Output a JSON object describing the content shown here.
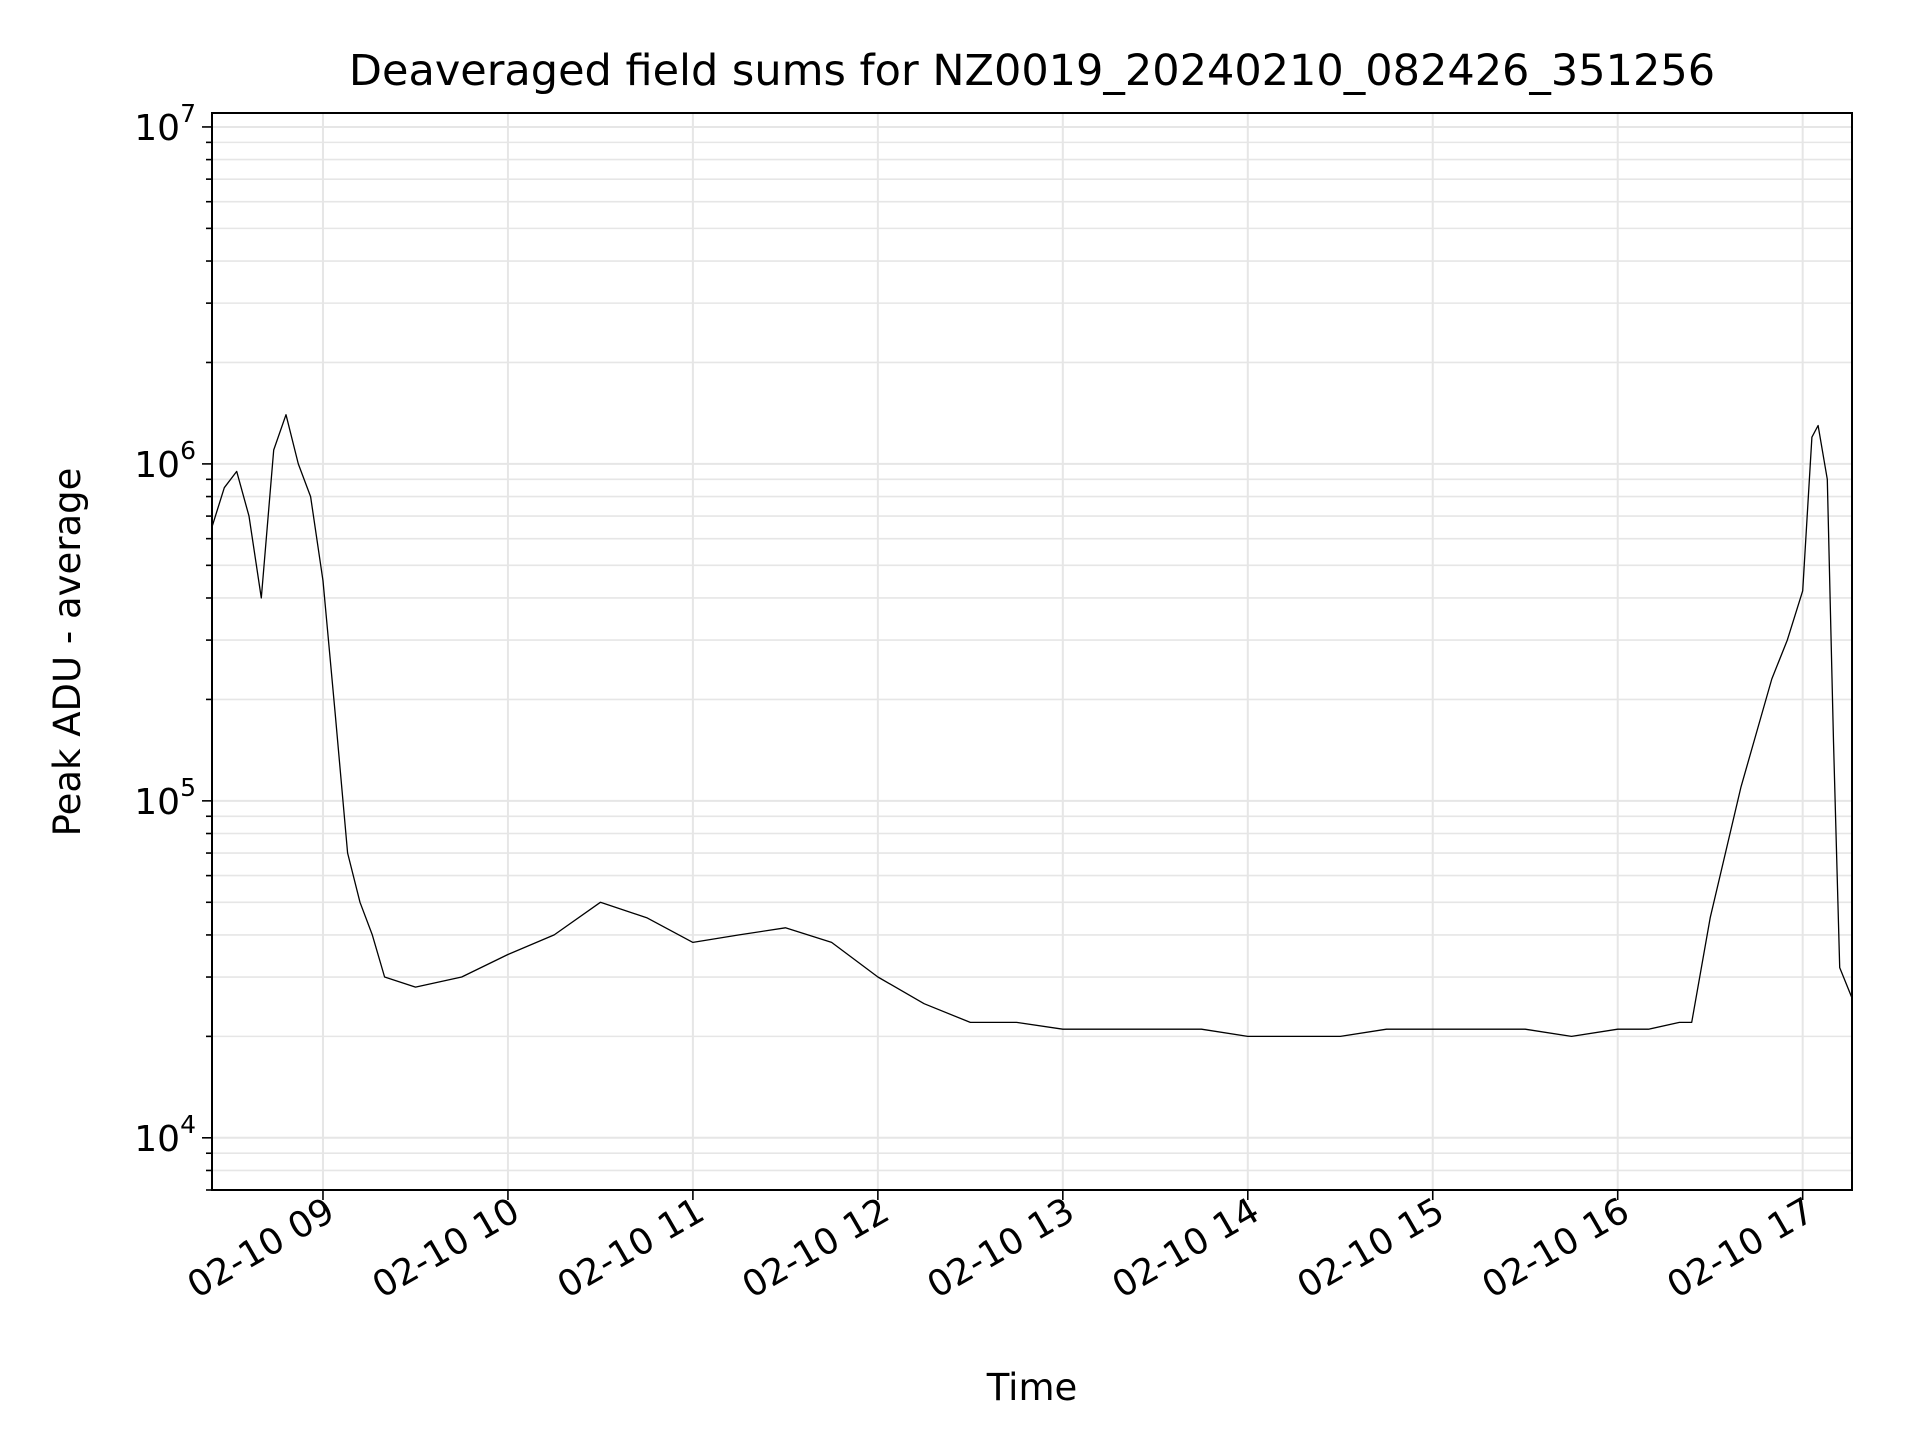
{
  "chart_data": {
    "type": "line",
    "title": "Deaveraged field sums for NZ0019_20240210_082426_351256",
    "xlabel": "Time",
    "ylabel": "Peak ADU - average",
    "yscale": "log",
    "ylim": [
      7000,
      11000000
    ],
    "xlim": [
      "02-10 08:24",
      "02-10 17:16"
    ],
    "x_ticks": [
      "02-10 09",
      "02-10 10",
      "02-10 11",
      "02-10 12",
      "02-10 13",
      "02-10 14",
      "02-10 15",
      "02-10 16",
      "02-10 17"
    ],
    "y_ticks": [
      {
        "base": "10",
        "exp": "4",
        "value": 10000
      },
      {
        "base": "10",
        "exp": "5",
        "value": 100000
      },
      {
        "base": "10",
        "exp": "6",
        "value": 1000000
      },
      {
        "base": "10",
        "exp": "7",
        "value": 10000000
      }
    ],
    "grid": true,
    "line_color": "#000000",
    "series": [
      {
        "x": [
          "08:24",
          "08:28",
          "08:32",
          "08:36",
          "08:40",
          "08:44",
          "08:48",
          "08:52",
          "08:56",
          "09:00",
          "09:04",
          "09:08",
          "09:12",
          "09:16",
          "09:20",
          "09:30",
          "09:45",
          "10:00",
          "10:15",
          "10:30",
          "10:45",
          "11:00",
          "11:15",
          "11:30",
          "11:45",
          "12:00",
          "12:15",
          "12:30",
          "12:45",
          "13:00",
          "13:15",
          "13:30",
          "13:45",
          "14:00",
          "14:15",
          "14:30",
          "14:45",
          "15:00",
          "15:15",
          "15:30",
          "15:45",
          "16:00",
          "16:10",
          "16:20",
          "16:24",
          "16:30",
          "16:40",
          "16:50",
          "16:55",
          "17:00",
          "17:03",
          "17:05",
          "17:08",
          "17:10",
          "17:12",
          "17:16"
        ],
        "y": [
          650000,
          850000,
          950000,
          700000,
          400000,
          1100000,
          1400000,
          1000000,
          800000,
          450000,
          180000,
          70000,
          50000,
          40000,
          30000,
          28000,
          30000,
          35000,
          40000,
          50000,
          45000,
          38000,
          40000,
          42000,
          38000,
          30000,
          25000,
          22000,
          22000,
          21000,
          21000,
          21000,
          21000,
          20000,
          20000,
          20000,
          21000,
          21000,
          21000,
          21000,
          20000,
          21000,
          21000,
          22000,
          22000,
          45000,
          110000,
          230000,
          300000,
          420000,
          1200000,
          1300000,
          900000,
          150000,
          32000,
          26000
        ]
      }
    ]
  }
}
